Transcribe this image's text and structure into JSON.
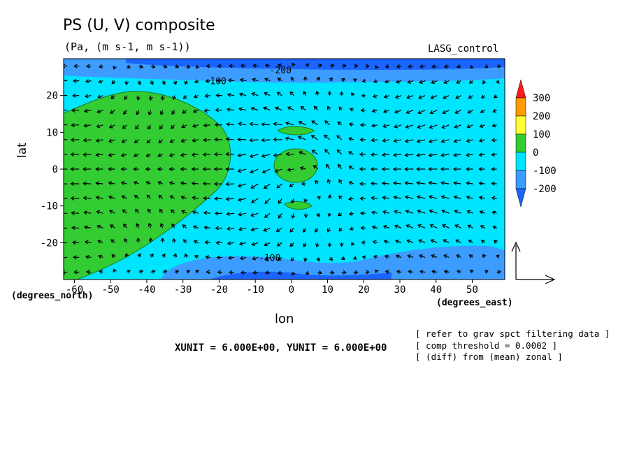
{
  "chart_data": {
    "type": "contour",
    "title": "PS (U, V) composite",
    "subtitle": "(Pa, (m s-1, m s-1))",
    "run_label": "LASG_control",
    "xlabel": "lon",
    "ylabel": "lat",
    "x_units": "(degrees_east)",
    "y_units": "(degrees_north)",
    "xlim": [
      -63,
      59
    ],
    "ylim": [
      -30,
      30
    ],
    "xticks": [
      -60,
      -50,
      -40,
      -30,
      -20,
      -10,
      0,
      10,
      20,
      30,
      40,
      50
    ],
    "yticks": [
      -20,
      -10,
      0,
      10,
      20
    ],
    "colorbar": {
      "levels": [
        300,
        200,
        100,
        0,
        -100,
        -200
      ],
      "colors": [
        "#ff1a1a",
        "#ff9c00",
        "#ffff33",
        "#33cc33",
        "#00e5ff",
        "#3d9cff",
        "#1a64ff"
      ]
    },
    "contour_labels": [
      {
        "text": "-200",
        "lon": -3,
        "lat": 27
      },
      {
        "text": "-100",
        "lon": -21,
        "lat": 24
      },
      {
        "text": "-100",
        "lon": -6,
        "lat": -24
      }
    ],
    "unit_line": "XUNIT = 6.000E+00, YUNIT = 6.000E+00",
    "notes": [
      "[ refer to grav spct filtering data ]",
      "[ comp threshold = 0.0002 ]",
      "[ (diff) from (mean) zonal ]"
    ]
  }
}
